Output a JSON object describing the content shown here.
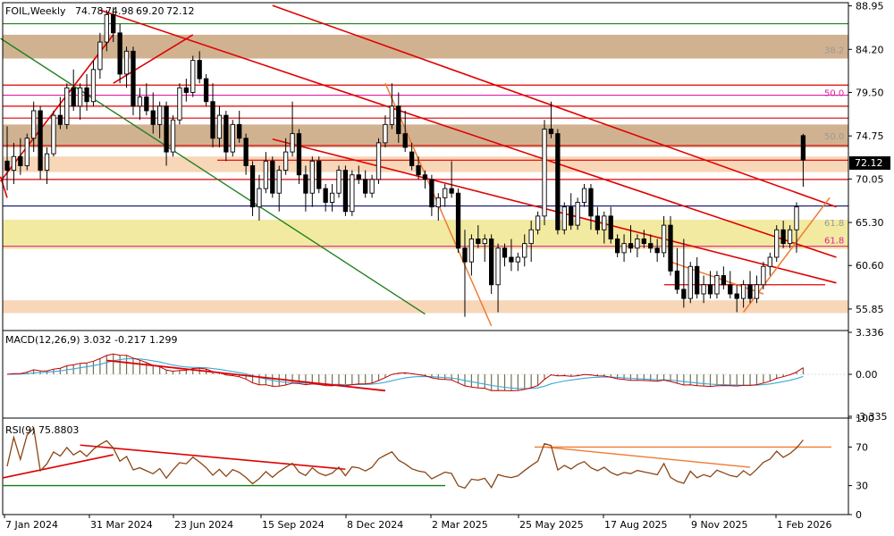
{
  "chart_data": {
    "type": "candlestick",
    "title": "FOIL,Weekly",
    "ohlc": {
      "open": "74.78",
      "high": "74.98",
      "low": "69.20",
      "close": "72.12"
    },
    "current_price": {
      "value": 72.12,
      "label": "72.12"
    },
    "ylim": [
      53.5,
      89.3
    ],
    "y_ticks": [
      "88.95",
      "84.20",
      "79.50",
      "74.75",
      "70.05",
      "65.30",
      "60.60",
      "55.85"
    ],
    "x_labels": [
      "7 Jan 2024",
      "31 Mar 2024",
      "23 Jun 2024",
      "15 Sep 2024",
      "8 Dec 2024",
      "2 Mar 2025",
      "25 May 2025",
      "17 Aug 2025",
      "9 Nov 2025",
      "1 Feb 2026"
    ],
    "fib_labels": [
      {
        "text": "38.2",
        "price": 84.2,
        "color": "#999999"
      },
      {
        "text": "50.0",
        "price": 79.5,
        "color": "#e020a0"
      },
      {
        "text": "50.0",
        "price": 74.75,
        "color": "#999999"
      },
      {
        "text": "61.8",
        "price": 65.3,
        "color": "#999999"
      },
      {
        "text": "61.8",
        "price": 63.4,
        "color": "#e020a0"
      }
    ],
    "candles": [
      {
        "o": 72.0,
        "h": 75.8,
        "l": 68.8,
        "c": 71.0
      },
      {
        "o": 71.0,
        "h": 74.0,
        "l": 69.5,
        "c": 72.5
      },
      {
        "o": 72.5,
        "h": 74.5,
        "l": 70.5,
        "c": 71.5
      },
      {
        "o": 71.5,
        "h": 75.0,
        "l": 71.0,
        "c": 74.5
      },
      {
        "o": 74.5,
        "h": 78.5,
        "l": 73.0,
        "c": 77.5
      },
      {
        "o": 77.5,
        "h": 78.0,
        "l": 70.0,
        "c": 71.0
      },
      {
        "o": 71.0,
        "h": 73.5,
        "l": 69.5,
        "c": 72.8
      },
      {
        "o": 72.8,
        "h": 77.5,
        "l": 72.5,
        "c": 77.0
      },
      {
        "o": 77.0,
        "h": 79.0,
        "l": 75.5,
        "c": 76.0
      },
      {
        "o": 76.0,
        "h": 80.5,
        "l": 75.5,
        "c": 80.0
      },
      {
        "o": 80.0,
        "h": 82.0,
        "l": 77.5,
        "c": 78.0
      },
      {
        "o": 78.0,
        "h": 80.5,
        "l": 76.5,
        "c": 80.0
      },
      {
        "o": 80.0,
        "h": 81.5,
        "l": 77.5,
        "c": 78.5
      },
      {
        "o": 78.5,
        "h": 83.0,
        "l": 78.0,
        "c": 82.0
      },
      {
        "o": 82.0,
        "h": 86.0,
        "l": 81.0,
        "c": 85.0
      },
      {
        "o": 85.0,
        "h": 88.5,
        "l": 84.0,
        "c": 88.0
      },
      {
        "o": 88.0,
        "h": 88.8,
        "l": 85.0,
        "c": 86.0
      },
      {
        "o": 86.0,
        "h": 87.0,
        "l": 80.5,
        "c": 81.5
      },
      {
        "o": 81.5,
        "h": 84.5,
        "l": 80.0,
        "c": 84.0
      },
      {
        "o": 84.0,
        "h": 84.5,
        "l": 77.0,
        "c": 78.0
      },
      {
        "o": 78.0,
        "h": 80.0,
        "l": 76.5,
        "c": 79.0
      },
      {
        "o": 79.0,
        "h": 80.5,
        "l": 77.0,
        "c": 77.5
      },
      {
        "o": 77.5,
        "h": 79.5,
        "l": 75.0,
        "c": 76.0
      },
      {
        "o": 76.0,
        "h": 78.5,
        "l": 74.5,
        "c": 78.0
      },
      {
        "o": 78.0,
        "h": 78.5,
        "l": 71.5,
        "c": 73.0
      },
      {
        "o": 73.0,
        "h": 77.0,
        "l": 72.5,
        "c": 76.5
      },
      {
        "o": 76.5,
        "h": 80.5,
        "l": 76.0,
        "c": 80.0
      },
      {
        "o": 80.0,
        "h": 81.0,
        "l": 78.5,
        "c": 79.5
      },
      {
        "o": 79.5,
        "h": 83.5,
        "l": 79.0,
        "c": 83.0
      },
      {
        "o": 83.0,
        "h": 84.0,
        "l": 80.5,
        "c": 81.0
      },
      {
        "o": 81.0,
        "h": 81.5,
        "l": 78.0,
        "c": 78.5
      },
      {
        "o": 78.5,
        "h": 80.5,
        "l": 73.5,
        "c": 74.5
      },
      {
        "o": 74.5,
        "h": 78.0,
        "l": 73.5,
        "c": 77.0
      },
      {
        "o": 77.0,
        "h": 77.5,
        "l": 72.0,
        "c": 73.0
      },
      {
        "o": 73.0,
        "h": 76.5,
        "l": 72.5,
        "c": 76.0
      },
      {
        "o": 76.0,
        "h": 77.5,
        "l": 74.0,
        "c": 74.5
      },
      {
        "o": 74.5,
        "h": 75.0,
        "l": 70.5,
        "c": 71.5
      },
      {
        "o": 71.5,
        "h": 72.0,
        "l": 66.0,
        "c": 67.0
      },
      {
        "o": 67.0,
        "h": 70.5,
        "l": 65.5,
        "c": 69.0
      },
      {
        "o": 69.0,
        "h": 73.0,
        "l": 68.5,
        "c": 72.0
      },
      {
        "o": 72.0,
        "h": 72.5,
        "l": 68.0,
        "c": 68.5
      },
      {
        "o": 68.5,
        "h": 71.5,
        "l": 66.5,
        "c": 71.0
      },
      {
        "o": 71.0,
        "h": 74.5,
        "l": 70.5,
        "c": 73.0
      },
      {
        "o": 73.0,
        "h": 78.5,
        "l": 72.5,
        "c": 75.0
      },
      {
        "o": 75.0,
        "h": 75.5,
        "l": 69.5,
        "c": 70.5
      },
      {
        "o": 70.5,
        "h": 71.5,
        "l": 66.5,
        "c": 68.5
      },
      {
        "o": 68.5,
        "h": 72.5,
        "l": 67.0,
        "c": 72.0
      },
      {
        "o": 72.0,
        "h": 72.5,
        "l": 68.5,
        "c": 69.0
      },
      {
        "o": 69.0,
        "h": 69.5,
        "l": 66.5,
        "c": 67.5
      },
      {
        "o": 67.5,
        "h": 69.5,
        "l": 66.5,
        "c": 68.5
      },
      {
        "o": 68.5,
        "h": 71.5,
        "l": 68.0,
        "c": 71.0
      },
      {
        "o": 71.0,
        "h": 71.5,
        "l": 66.0,
        "c": 66.5
      },
      {
        "o": 66.5,
        "h": 71.0,
        "l": 66.0,
        "c": 70.5
      },
      {
        "o": 70.5,
        "h": 71.5,
        "l": 69.5,
        "c": 70.0
      },
      {
        "o": 70.0,
        "h": 71.0,
        "l": 68.0,
        "c": 68.5
      },
      {
        "o": 68.5,
        "h": 70.5,
        "l": 68.0,
        "c": 70.0
      },
      {
        "o": 70.0,
        "h": 74.5,
        "l": 69.5,
        "c": 74.0
      },
      {
        "o": 74.0,
        "h": 77.0,
        "l": 73.5,
        "c": 76.0
      },
      {
        "o": 76.0,
        "h": 80.5,
        "l": 75.5,
        "c": 78.0
      },
      {
        "o": 78.0,
        "h": 79.5,
        "l": 74.0,
        "c": 75.0
      },
      {
        "o": 75.0,
        "h": 77.5,
        "l": 73.0,
        "c": 73.5
      },
      {
        "o": 73.0,
        "h": 74.0,
        "l": 71.0,
        "c": 71.5
      },
      {
        "o": 71.5,
        "h": 72.5,
        "l": 70.0,
        "c": 70.5
      },
      {
        "o": 70.5,
        "h": 71.0,
        "l": 69.0,
        "c": 70.0
      },
      {
        "o": 70.0,
        "h": 70.5,
        "l": 66.0,
        "c": 67.0
      },
      {
        "o": 67.0,
        "h": 68.5,
        "l": 65.5,
        "c": 68.0
      },
      {
        "o": 68.0,
        "h": 69.5,
        "l": 67.0,
        "c": 69.0
      },
      {
        "o": 69.0,
        "h": 72.0,
        "l": 68.0,
        "c": 68.5
      },
      {
        "o": 68.5,
        "h": 69.0,
        "l": 62.0,
        "c": 62.5
      },
      {
        "o": 62.5,
        "h": 64.5,
        "l": 55.0,
        "c": 61.0
      },
      {
        "o": 61.0,
        "h": 64.0,
        "l": 59.5,
        "c": 63.5
      },
      {
        "o": 63.5,
        "h": 65.0,
        "l": 62.5,
        "c": 63.0
      },
      {
        "o": 63.0,
        "h": 64.0,
        "l": 61.0,
        "c": 63.5
      },
      {
        "o": 63.5,
        "h": 64.0,
        "l": 57.5,
        "c": 58.5
      },
      {
        "o": 58.5,
        "h": 63.0,
        "l": 55.5,
        "c": 62.5
      },
      {
        "o": 62.5,
        "h": 63.0,
        "l": 60.5,
        "c": 61.5
      },
      {
        "o": 61.5,
        "h": 63.5,
        "l": 60.0,
        "c": 61.0
      },
      {
        "o": 61.0,
        "h": 62.0,
        "l": 60.0,
        "c": 61.5
      },
      {
        "o": 61.5,
        "h": 64.0,
        "l": 60.5,
        "c": 63.0
      },
      {
        "o": 63.0,
        "h": 65.5,
        "l": 61.0,
        "c": 64.5
      },
      {
        "o": 64.5,
        "h": 66.5,
        "l": 64.0,
        "c": 66.0
      },
      {
        "o": 66.0,
        "h": 76.5,
        "l": 65.0,
        "c": 75.5
      },
      {
        "o": 75.5,
        "h": 78.5,
        "l": 74.5,
        "c": 75.0
      },
      {
        "o": 75.0,
        "h": 75.5,
        "l": 64.0,
        "c": 64.5
      },
      {
        "o": 64.5,
        "h": 67.5,
        "l": 64.0,
        "c": 67.0
      },
      {
        "o": 67.0,
        "h": 68.5,
        "l": 64.5,
        "c": 65.0
      },
      {
        "o": 65.0,
        "h": 68.0,
        "l": 64.5,
        "c": 67.5
      },
      {
        "o": 67.5,
        "h": 69.5,
        "l": 67.0,
        "c": 69.0
      },
      {
        "o": 69.0,
        "h": 69.5,
        "l": 64.5,
        "c": 66.0
      },
      {
        "o": 66.0,
        "h": 67.0,
        "l": 64.0,
        "c": 64.5
      },
      {
        "o": 64.5,
        "h": 66.5,
        "l": 63.0,
        "c": 66.0
      },
      {
        "o": 66.0,
        "h": 67.0,
        "l": 63.0,
        "c": 63.5
      },
      {
        "o": 63.5,
        "h": 64.0,
        "l": 61.5,
        "c": 62.0
      },
      {
        "o": 62.0,
        "h": 64.0,
        "l": 61.0,
        "c": 63.0
      },
      {
        "o": 63.0,
        "h": 65.0,
        "l": 62.0,
        "c": 62.5
      },
      {
        "o": 62.5,
        "h": 64.0,
        "l": 61.5,
        "c": 63.5
      },
      {
        "o": 63.5,
        "h": 64.5,
        "l": 62.5,
        "c": 63.0
      },
      {
        "o": 63.0,
        "h": 64.0,
        "l": 62.0,
        "c": 62.5
      },
      {
        "o": 62.5,
        "h": 63.5,
        "l": 61.0,
        "c": 62.0
      },
      {
        "o": 62.0,
        "h": 66.0,
        "l": 61.5,
        "c": 65.0
      },
      {
        "o": 65.0,
        "h": 66.0,
        "l": 59.5,
        "c": 60.0
      },
      {
        "o": 60.0,
        "h": 62.5,
        "l": 57.5,
        "c": 58.0
      },
      {
        "o": 58.0,
        "h": 63.5,
        "l": 56.0,
        "c": 57.0
      },
      {
        "o": 57.0,
        "h": 61.0,
        "l": 56.5,
        "c": 60.5
      },
      {
        "o": 60.5,
        "h": 61.5,
        "l": 57.0,
        "c": 57.5
      },
      {
        "o": 57.5,
        "h": 59.5,
        "l": 56.5,
        "c": 58.5
      },
      {
        "o": 58.5,
        "h": 60.0,
        "l": 57.0,
        "c": 57.5
      },
      {
        "o": 57.5,
        "h": 60.0,
        "l": 57.0,
        "c": 59.5
      },
      {
        "o": 59.5,
        "h": 60.5,
        "l": 58.0,
        "c": 58.5
      },
      {
        "o": 58.5,
        "h": 60.0,
        "l": 57.0,
        "c": 57.5
      },
      {
        "o": 57.5,
        "h": 58.5,
        "l": 55.5,
        "c": 57.0
      },
      {
        "o": 57.0,
        "h": 59.0,
        "l": 56.0,
        "c": 58.5
      },
      {
        "o": 58.5,
        "h": 60.0,
        "l": 56.5,
        "c": 57.0
      },
      {
        "o": 57.0,
        "h": 59.5,
        "l": 56.5,
        "c": 58.5
      },
      {
        "o": 58.5,
        "h": 61.0,
        "l": 58.0,
        "c": 60.5
      },
      {
        "o": 60.5,
        "h": 62.0,
        "l": 59.5,
        "c": 61.5
      },
      {
        "o": 61.5,
        "h": 65.0,
        "l": 61.0,
        "c": 64.5
      },
      {
        "o": 64.5,
        "h": 65.5,
        "l": 62.5,
        "c": 63.0
      },
      {
        "o": 63.0,
        "h": 65.0,
        "l": 62.5,
        "c": 64.5
      },
      {
        "o": 64.5,
        "h": 67.5,
        "l": 62.0,
        "c": 67.0
      },
      {
        "o": 74.78,
        "h": 74.98,
        "l": 69.2,
        "c": 72.12
      }
    ],
    "macd": {
      "label": "MACD(12,26,9) 3.032 -0.217 1.299",
      "y_ticks": [
        "3.336",
        "0.00",
        "-3.335"
      ],
      "ylim": [
        -3.335,
        3.336
      ]
    },
    "rsi": {
      "label": "RSI(9) 75.8803",
      "y_ticks": [
        "100",
        "70",
        "30",
        "0"
      ],
      "ylim": [
        0,
        100
      ],
      "current": 75.8803
    },
    "colors": {
      "bull_body": "#ffffff",
      "bear_body": "#000000",
      "trend_red": "#e00000",
      "support_green": "#108010",
      "channel_green": "#208020",
      "zone_tan": "#c8a57e",
      "zone_yellow": "#f0e690",
      "zone_peach": "#f7cfac",
      "fib_magenta": "#e020a0",
      "orange_line": "#f07a30",
      "navy_line": "#101070",
      "macd_line": "#c00000",
      "signal_line": "#3aa8d8",
      "rsi_line": "#8b4513"
    }
  }
}
